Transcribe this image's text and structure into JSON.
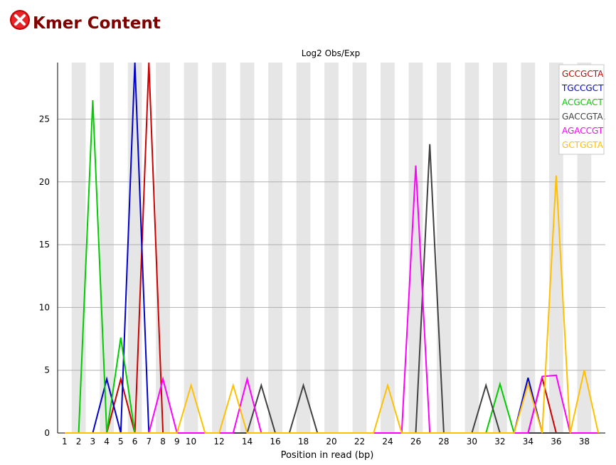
{
  "header": {
    "status_icon": "error-cross-icon",
    "status_color": "#d41010",
    "title": "Kmer Content",
    "title_color": "#800000"
  },
  "chart_data": {
    "type": "line",
    "title": "Log2 Obs/Exp",
    "xlabel": "Position in read (bp)",
    "ylabel": "",
    "x": [
      1,
      2,
      3,
      4,
      5,
      6,
      7,
      8,
      9,
      10,
      11,
      12,
      13,
      14,
      15,
      16,
      17,
      18,
      19,
      20,
      21,
      22,
      23,
      24,
      25,
      26,
      27,
      28,
      29,
      30,
      31,
      32,
      33,
      34,
      35,
      36,
      37,
      38,
      39
    ],
    "x_tick_labels": [
      "1",
      "2",
      "3",
      "4",
      "5",
      "6",
      "7",
      "8",
      "9",
      "10",
      "12",
      "14",
      "16",
      "18",
      "20",
      "22",
      "24",
      "26",
      "28",
      "30",
      "32",
      "34",
      "36",
      "38"
    ],
    "y_tick_labels": [
      "0",
      "5",
      "10",
      "15",
      "20",
      "25"
    ],
    "ylim": [
      0,
      29.5
    ],
    "grid": "horizontal",
    "background_bands": "alternating grey columns",
    "legend_position": "top-right",
    "series": [
      {
        "name": "GCCGCTA",
        "color": "#cc0000",
        "values": [
          0,
          0,
          0,
          0,
          4.3,
          0,
          29.5,
          0,
          0,
          0,
          0,
          0,
          0,
          0,
          0,
          0,
          0,
          0,
          0,
          0,
          0,
          0,
          0,
          0,
          0,
          0,
          0,
          0,
          0,
          0,
          0,
          0,
          0,
          0,
          4.4,
          0,
          0,
          0,
          0
        ]
      },
      {
        "name": "TGCCGCT",
        "color": "#0000cc",
        "values": [
          0,
          0,
          0,
          4.3,
          0,
          29.5,
          0,
          0,
          0,
          0,
          0,
          0,
          0,
          0,
          0,
          0,
          0,
          0,
          0,
          0,
          0,
          0,
          0,
          0,
          0,
          0,
          0,
          0,
          0,
          0,
          0,
          0,
          0,
          4.4,
          0,
          0,
          0,
          0,
          0
        ]
      },
      {
        "name": "ACGCACT",
        "color": "#00cc00",
        "values": [
          0,
          0,
          26.5,
          0,
          7.6,
          0,
          0,
          0,
          0,
          0,
          0,
          0,
          0,
          0,
          0,
          0,
          0,
          0,
          0,
          0,
          0,
          0,
          0,
          0,
          0,
          0,
          0,
          0,
          0,
          0,
          0,
          3.9,
          0,
          0,
          0,
          0,
          0,
          0,
          0
        ]
      },
      {
        "name": "GACCGTA",
        "color": "#404040",
        "values": [
          0,
          0,
          0,
          0,
          0,
          0,
          0,
          0,
          0,
          0,
          0,
          0,
          0,
          0,
          3.8,
          0,
          0,
          3.8,
          0,
          0,
          0,
          0,
          0,
          0,
          0,
          0,
          23,
          0,
          0,
          0,
          3.8,
          0,
          0,
          0,
          0,
          0,
          0,
          0,
          0
        ]
      },
      {
        "name": "AGACCGT",
        "color": "#ff00ff",
        "values": [
          0,
          0,
          0,
          0,
          0,
          0,
          0,
          4.3,
          0,
          0,
          0,
          0,
          0,
          4.3,
          0,
          0,
          0,
          0,
          0,
          0,
          0,
          0,
          0,
          0,
          0,
          21.3,
          0,
          0,
          0,
          0,
          0,
          0,
          0,
          0,
          4.5,
          4.6,
          0,
          0,
          0
        ]
      },
      {
        "name": "GCTGGTA",
        "color": "#ffc000",
        "values": [
          0,
          0,
          0,
          0,
          0,
          0,
          0,
          0,
          0,
          3.8,
          0,
          0,
          3.8,
          0,
          0,
          0,
          0,
          0,
          0,
          0,
          0,
          0,
          0,
          3.8,
          0,
          0,
          0,
          0,
          0,
          0,
          0,
          0,
          0,
          3.9,
          0,
          20.5,
          0,
          5,
          0
        ]
      }
    ]
  }
}
